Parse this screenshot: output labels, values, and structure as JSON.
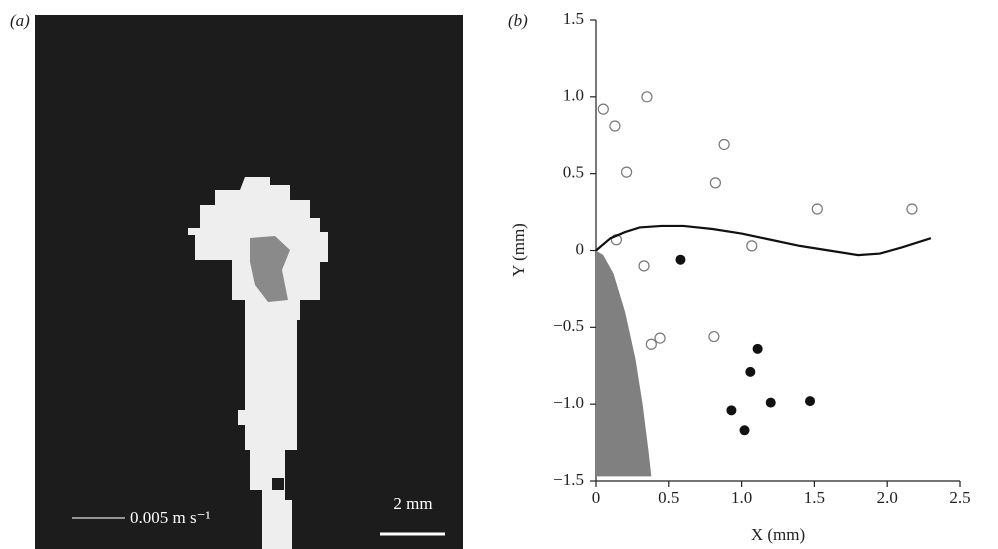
{
  "panel_a": {
    "label": "(a)",
    "velocity_scale": "0.005 m s⁻¹",
    "length_scale": "2 mm"
  },
  "chart_data": {
    "type": "scatter",
    "label": "(b)",
    "xlabel": "X (mm)",
    "ylabel": "Y (mm)",
    "xlim": [
      0,
      2.5
    ],
    "ylim": [
      -1.5,
      1.5
    ],
    "xticks": [
      0,
      0.5,
      {
        "value": 1,
        "label": "1.0"
      },
      1.5,
      {
        "value": 2,
        "label": "2.0"
      },
      2.5
    ],
    "yticks": [
      {
        "value": -1.5,
        "label": "−1.5"
      },
      {
        "value": -1,
        "label": "−1.0"
      },
      {
        "value": -0.5,
        "label": "−0.5"
      },
      0,
      0.5,
      {
        "value": 1,
        "label": "1.0"
      },
      1.5
    ],
    "series": [
      {
        "marker": "open",
        "color": "#777777",
        "x": [
          0.05,
          0.13,
          0.35,
          0.21,
          0.88,
          0.82,
          1.52,
          2.17,
          0.14,
          0.33,
          1.07,
          0.38,
          0.44,
          0.81
        ],
        "values": [
          0.92,
          0.81,
          1.0,
          0.51,
          0.69,
          0.44,
          0.27,
          0.27,
          0.07,
          -0.1,
          0.03,
          -0.61,
          -0.57,
          -0.56
        ]
      },
      {
        "marker": "filled",
        "color": "#111111",
        "x": [
          0.58,
          1.11,
          1.06,
          0.93,
          1.2,
          1.47,
          1.02
        ],
        "values": [
          -0.06,
          -0.64,
          -0.79,
          -1.04,
          -0.99,
          -0.98,
          -1.17
        ]
      },
      {
        "marker": "line",
        "color": "#111111",
        "x": [
          0,
          0.1,
          0.2,
          0.3,
          0.45,
          0.6,
          0.8,
          1.0,
          1.2,
          1.4,
          1.6,
          1.8,
          1.95,
          2.1,
          2.2,
          2.3
        ],
        "values": [
          0,
          0.08,
          0.12,
          0.15,
          0.16,
          0.16,
          0.14,
          0.11,
          0.07,
          0.03,
          0.0,
          -0.03,
          -0.02,
          0.02,
          0.05,
          0.08
        ]
      }
    ],
    "region": {
      "color": "#808080",
      "x": [
        0,
        0.05,
        0.12,
        0.2,
        0.27,
        0.32,
        0.36,
        0.38,
        0
      ],
      "y": [
        0,
        -0.03,
        -0.15,
        -0.4,
        -0.7,
        -1.0,
        -1.3,
        -1.47,
        -1.47
      ]
    }
  }
}
